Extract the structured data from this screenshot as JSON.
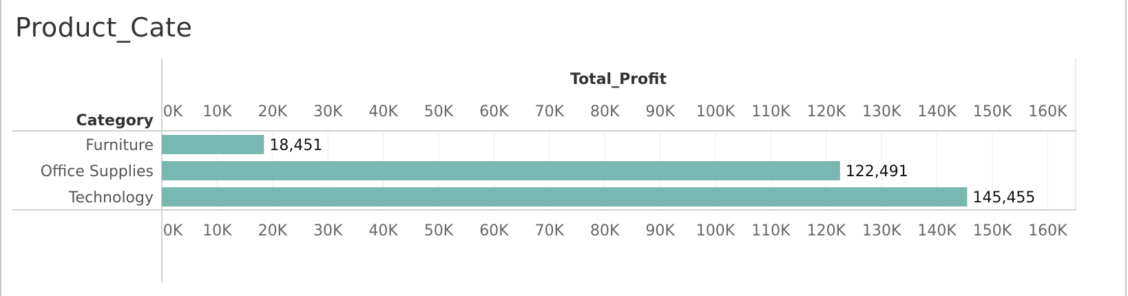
{
  "sheet": {
    "title": "Product_Cate"
  },
  "chart_data": {
    "type": "bar",
    "orientation": "horizontal",
    "title": "Product_Cate",
    "xlabel": "Total_Profit",
    "ylabel": "Category",
    "categories": [
      "Furniture",
      "Office Supplies",
      "Technology"
    ],
    "values": [
      18451,
      122491,
      145455
    ],
    "data_labels": [
      "18,451",
      "122,491",
      "145,455"
    ],
    "xlim": [
      0,
      165000
    ],
    "x_ticks": [
      0,
      10000,
      20000,
      30000,
      40000,
      50000,
      60000,
      70000,
      80000,
      90000,
      100000,
      110000,
      120000,
      130000,
      140000,
      150000,
      160000
    ],
    "x_tick_labels": [
      "0K",
      "10K",
      "20K",
      "30K",
      "40K",
      "50K",
      "60K",
      "70K",
      "80K",
      "90K",
      "100K",
      "110K",
      "120K",
      "130K",
      "140K",
      "150K",
      "160K"
    ],
    "axis_position": "top and bottom",
    "grid": true,
    "legend": false,
    "bar_color": "#79b7b1"
  }
}
